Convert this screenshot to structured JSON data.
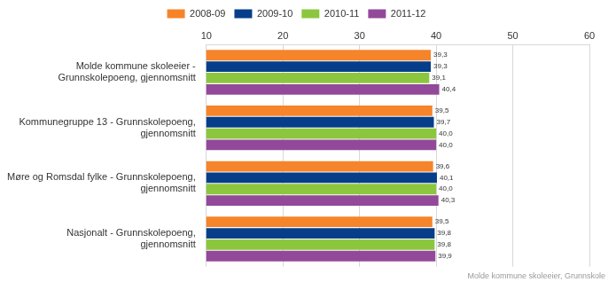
{
  "chart_data": {
    "type": "bar",
    "orientation": "horizontal",
    "categories": [
      [
        "Molde kommune skoleeier -",
        "Grunnskolepoeng, gjennomsnitt"
      ],
      [
        "Kommunegruppe 13 - Grunnskolepoeng,",
        "gjennomsnitt"
      ],
      [
        "Møre og Romsdal fylke - Grunnskolepoeng,",
        "gjennomsnitt"
      ],
      [
        "Nasjonalt - Grunnskolepoeng,",
        "gjennomsnitt"
      ]
    ],
    "series": [
      {
        "name": "2008-09",
        "color": "#f5842a",
        "values": [
          39.3,
          39.5,
          39.6,
          39.5
        ],
        "value_labels": [
          "39,3",
          "39,5",
          "39,6",
          "39,5"
        ]
      },
      {
        "name": "2009-10",
        "color": "#063e8a",
        "values": [
          39.3,
          39.7,
          40.1,
          39.8
        ],
        "value_labels": [
          "39,3",
          "39,7",
          "40,1",
          "39,8"
        ]
      },
      {
        "name": "2010-11",
        "color": "#8cc63f",
        "values": [
          39.1,
          40.0,
          40.0,
          39.8
        ],
        "value_labels": [
          "39,1",
          "40,0",
          "40,0",
          "39,8"
        ]
      },
      {
        "name": "2011-12",
        "color": "#93499a",
        "values": [
          40.4,
          40.0,
          40.3,
          39.9
        ],
        "value_labels": [
          "40,4",
          "40,0",
          "40,3",
          "39,9"
        ]
      }
    ],
    "xlim": [
      10,
      60
    ],
    "xticks": [
      10,
      20,
      30,
      40,
      50,
      60
    ],
    "grid": true,
    "legend": "top",
    "data_labels": true,
    "annotations": [
      "Molde kommune skoleeier, Grunnskole"
    ]
  }
}
